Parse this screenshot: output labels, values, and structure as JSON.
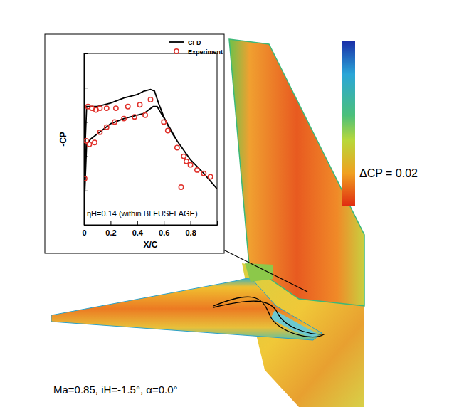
{
  "chart_data": {
    "type": "line",
    "x_label": "X/C",
    "y_label": "-CP",
    "xlim": [
      0,
      1
    ],
    "xticks": [
      0,
      0.2,
      0.4,
      0.6,
      0.8
    ],
    "ylim": [
      0,
      1
    ],
    "yticks": [
      0,
      0.2,
      0.4,
      0.6,
      0.8,
      1
    ],
    "tick_labels": "x",
    "legend": "upper right",
    "annotations": [
      "ηH=0.14 (within BLFUSELAGE)",
      "Ma=0.85, iH=-1.5°, α=0.0°",
      "ΔCP = 0.02"
    ],
    "series": [
      {
        "name": "CFD",
        "type": "line",
        "color": "#000000",
        "line_style": "solid",
        "x": [
          0,
          0.01,
          0.02,
          0.05,
          0.1,
          0.2,
          0.3,
          0.4,
          0.45,
          0.5,
          0.53,
          0.56,
          0.6,
          0.65,
          0.7,
          0.8,
          0.9,
          1.0,
          0.9,
          0.8,
          0.7,
          0.62,
          0.58,
          0.55,
          0.52,
          0.45,
          0.3,
          0.2,
          0.1,
          0.05,
          0.02,
          0.0
        ],
        "values": [
          0.07,
          0.49,
          0.69,
          0.69,
          0.69,
          0.71,
          0.74,
          0.76,
          0.78,
          0.79,
          0.78,
          0.71,
          0.63,
          0.55,
          0.49,
          0.38,
          0.3,
          0.21,
          0.3,
          0.38,
          0.49,
          0.6,
          0.65,
          0.69,
          0.69,
          0.65,
          0.62,
          0.59,
          0.53,
          0.5,
          0.47,
          0.07
        ]
      },
      {
        "name": "Experiment",
        "type": "scatter",
        "color": "#e0302a",
        "marker": "circle",
        "x": [
          0.005,
          0.016,
          0.03,
          0.06,
          0.09,
          0.12,
          0.17,
          0.24,
          0.33,
          0.42,
          0.5,
          0.04,
          0.08,
          0.12,
          0.17,
          0.23,
          0.3,
          0.38,
          0.46,
          0.6,
          0.63,
          0.7,
          0.73,
          0.75,
          0.77,
          0.8,
          0.85,
          0.9,
          0.95
        ],
        "values": [
          0.27,
          0.49,
          0.69,
          0.68,
          0.67,
          0.68,
          0.68,
          0.68,
          0.69,
          0.7,
          0.73,
          0.47,
          0.48,
          0.54,
          0.57,
          0.6,
          0.62,
          0.63,
          0.64,
          0.6,
          0.55,
          0.45,
          0.22,
          0.4,
          0.37,
          0.35,
          0.32,
          0.3,
          0.28
        ]
      }
    ]
  }
}
